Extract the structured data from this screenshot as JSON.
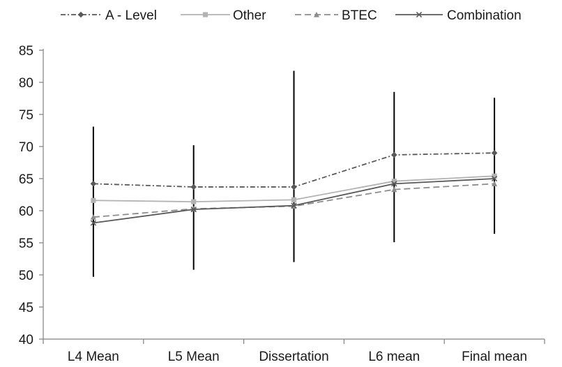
{
  "chart_data": {
    "type": "line",
    "title": "",
    "xlabel": "",
    "ylabel": "",
    "categories": [
      "L4 Mean",
      "L5 Mean",
      "Dissertation",
      "L6 mean",
      "Final mean"
    ],
    "ylim": [
      40,
      85
    ],
    "yticks": [
      40,
      45,
      50,
      55,
      60,
      65,
      70,
      75,
      80,
      85
    ],
    "grid": false,
    "legend_position": "top",
    "series": [
      {
        "name": "A - Level",
        "values": [
          64.2,
          63.7,
          63.7,
          68.7,
          69.0
        ],
        "color": "#595959",
        "dash": "dash-dot",
        "marker": "diamond"
      },
      {
        "name": "Other",
        "values": [
          61.6,
          61.4,
          61.7,
          64.6,
          65.4
        ],
        "color": "#b3b3b3",
        "dash": "solid",
        "marker": "square"
      },
      {
        "name": "BTEC",
        "values": [
          59.0,
          60.3,
          60.7,
          63.3,
          64.2
        ],
        "color": "#8c8c8c",
        "dash": "dashed",
        "marker": "triangle"
      },
      {
        "name": "Combination",
        "values": [
          58.1,
          60.2,
          60.8,
          64.2,
          65.0
        ],
        "color": "#595959",
        "dash": "solid",
        "marker": "x"
      }
    ],
    "error_bars": [
      {
        "category": "L4 Mean",
        "low": 49.7,
        "high": 73.1
      },
      {
        "category": "L5 Mean",
        "low": 50.8,
        "high": 70.2
      },
      {
        "category": "Dissertation",
        "low": 52.0,
        "high": 81.8
      },
      {
        "category": "L6 mean",
        "low": 55.1,
        "high": 78.5
      },
      {
        "category": "Final mean",
        "low": 56.4,
        "high": 77.6
      }
    ]
  }
}
